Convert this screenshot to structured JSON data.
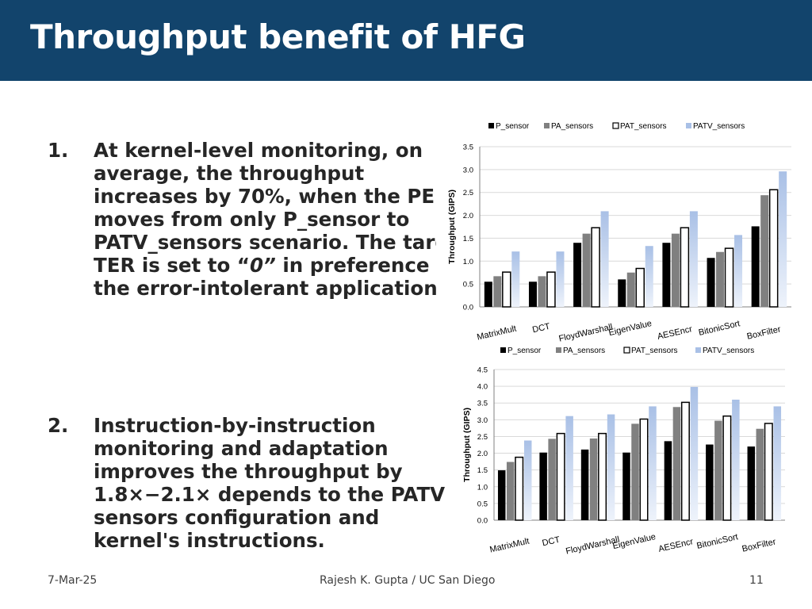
{
  "title": "Throughput benefit of HFG",
  "points": [
    {
      "num": "1.",
      "pre": "At kernel-level monitoring, on average, the throughput increases by 70%, when the PE moves from only P_sensor to PATV_sensors scenario. The target TER is set to “",
      "emph": "0”",
      "post": " in preference to the error-intolerant applications."
    },
    {
      "num": "2.",
      "text": "Instruction-by-instruction monitoring and adaptation improves the throughput by 1.8×−2.1× depends to the PATV sensors configuration and kernel's instructions."
    }
  ],
  "footer": {
    "date": "7-Mar-25",
    "author": "Rajesh K. Gupta / UC San Diego",
    "page": "11"
  },
  "colors": {
    "header": "#12446c",
    "p_sensor": "#000000",
    "pa_sensors": "#808080",
    "pat_sensors": "#ffffff",
    "patv_sensors": "#a9c0e6"
  },
  "chart_data": [
    {
      "type": "bar",
      "title": "",
      "xlabel": "",
      "ylabel": "Throughput (GIPS)",
      "ylim": [
        0,
        3.5
      ],
      "yticks": [
        "0.0",
        "0.5",
        "1.0",
        "1.5",
        "2.0",
        "2.5",
        "3.0",
        "3.5"
      ],
      "legend": "top",
      "categories": [
        "MatrixMult",
        "DCT",
        "FloydWarshall",
        "EigenValue",
        "AESEncr",
        "BitonicSort",
        "BoxFilter"
      ],
      "series": [
        {
          "name": "P_sensor",
          "values": [
            0.55,
            0.55,
            1.4,
            0.6,
            1.4,
            1.07,
            1.76
          ]
        },
        {
          "name": "PA_sensors",
          "values": [
            0.67,
            0.67,
            1.6,
            0.75,
            1.6,
            1.2,
            2.44
          ]
        },
        {
          "name": "PAT_sensors",
          "values": [
            0.76,
            0.76,
            1.73,
            0.84,
            1.73,
            1.28,
            2.56
          ]
        },
        {
          "name": "PATV_sensors",
          "values": [
            1.21,
            1.21,
            2.09,
            1.33,
            2.09,
            1.57,
            2.96
          ]
        }
      ]
    },
    {
      "type": "bar",
      "title": "",
      "xlabel": "",
      "ylabel": "Throughput (GIPS)",
      "ylim": [
        0,
        4.5
      ],
      "yticks": [
        "0.0",
        "0.5",
        "1.0",
        "1.5",
        "2.0",
        "2.5",
        "3.0",
        "3.5",
        "4.0",
        "4.5"
      ],
      "legend": "top",
      "categories": [
        "MatrixMult",
        "DCT",
        "FloydWarshall",
        "EigenValue",
        "AESEncr",
        "BitonicSort",
        "BoxFilter"
      ],
      "series": [
        {
          "name": "P_sensor",
          "values": [
            1.49,
            2.02,
            2.11,
            2.02,
            2.36,
            2.26,
            2.2
          ]
        },
        {
          "name": "PA_sensors",
          "values": [
            1.74,
            2.43,
            2.44,
            2.88,
            3.38,
            2.97,
            2.73
          ]
        },
        {
          "name": "PAT_sensors",
          "values": [
            1.88,
            2.59,
            2.59,
            3.02,
            3.52,
            3.11,
            2.89
          ]
        },
        {
          "name": "PATV_sensors",
          "values": [
            2.38,
            3.11,
            3.16,
            3.4,
            3.98,
            3.6,
            3.4
          ]
        }
      ]
    }
  ]
}
